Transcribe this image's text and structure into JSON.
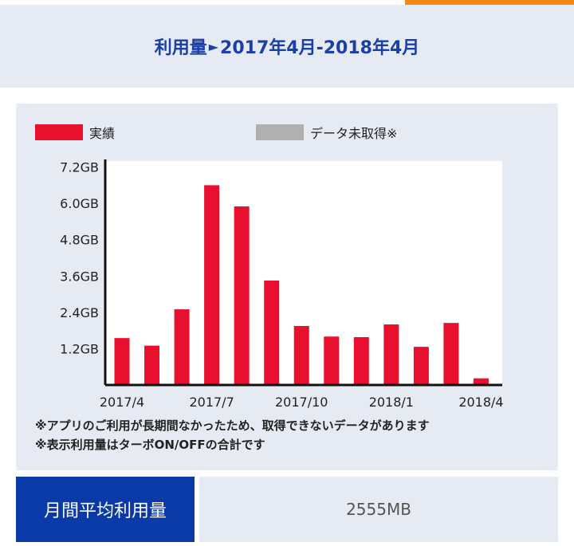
{
  "header": {
    "title_prefix": "利用量",
    "arrow": "►",
    "title_range": "2017年4月-2018年4月"
  },
  "legend": {
    "actual_label": "実績",
    "actual_color": "#e8102e",
    "missing_label": "データ未取得※",
    "missing_color": "#b0b0b0"
  },
  "notes": [
    "※アプリのご利用が長期間なかったため、取得できないデータがあります",
    "※表示利用量はターボON/OFFの合計です"
  ],
  "stats": {
    "label": "月間平均利用量",
    "value": "2555MB"
  },
  "chart_data": {
    "type": "bar",
    "categories": [
      "2017/4",
      "2017/5",
      "2017/6",
      "2017/7",
      "2017/8",
      "2017/9",
      "2017/10",
      "2017/11",
      "2017/12",
      "2018/1",
      "2018/2",
      "2018/3",
      "2018/4"
    ],
    "series": [
      {
        "name": "実績",
        "values": [
          1.55,
          1.3,
          2.5,
          6.6,
          5.9,
          3.45,
          1.95,
          1.6,
          1.58,
          2.0,
          1.26,
          2.05,
          0.22
        ]
      }
    ],
    "x_tick_labels": [
      "2017/4",
      "2017/7",
      "2017/10",
      "2018/1",
      "2018/4"
    ],
    "y_tick_labels": [
      "1.2GB",
      "2.4GB",
      "3.6GB",
      "4.8GB",
      "6.0GB",
      "7.2GB"
    ],
    "y_ticks": [
      1.2,
      2.4,
      3.6,
      4.8,
      6.0,
      7.2
    ],
    "ylim": [
      0,
      7.4
    ],
    "grid": false,
    "bar_color": "#e8102e"
  }
}
